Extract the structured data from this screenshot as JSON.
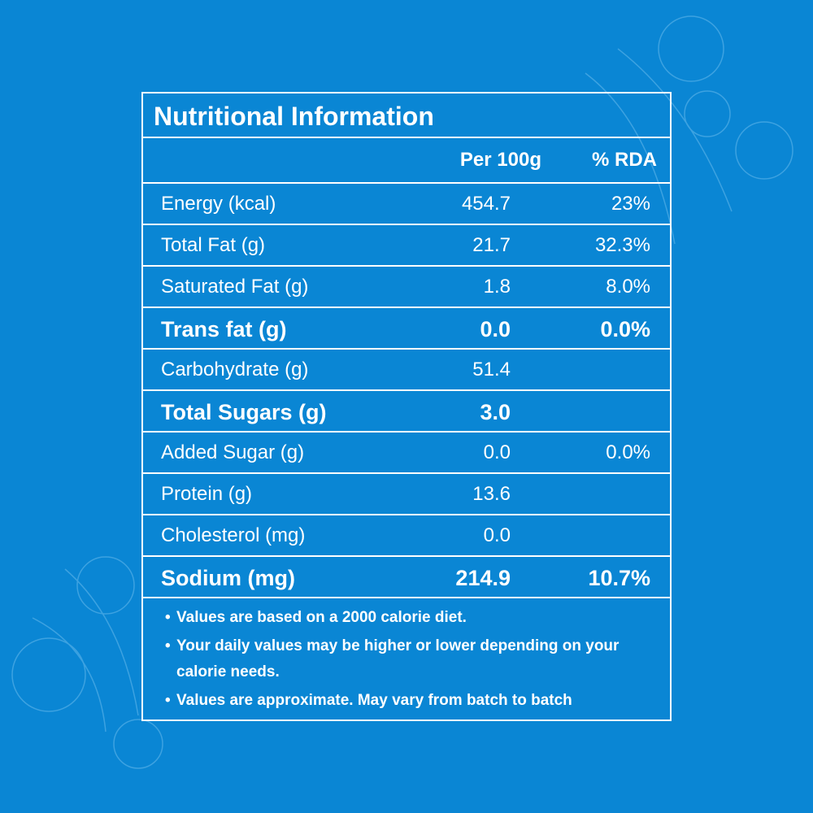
{
  "title": "Nutritional Information",
  "header": {
    "per_100g": "Per 100g",
    "rda": "% RDA"
  },
  "rows": [
    {
      "label": "Energy (kcal)",
      "per_100g": "454.7",
      "rda": "23%"
    },
    {
      "label": "Total Fat (g)",
      "per_100g": "21.7",
      "rda": "32.3%"
    },
    {
      "label": "Saturated Fat (g)",
      "per_100g": "1.8",
      "rda": "8.0%"
    },
    {
      "label": "Trans fat (g)",
      "per_100g": "0.0",
      "rda": "0.0%"
    },
    {
      "label": "Carbohydrate (g)",
      "per_100g": "51.4"
    },
    {
      "label": "Total Sugars (g)",
      "per_100g": "3.0"
    },
    {
      "label": "Added Sugar (g)",
      "per_100g": "0.0",
      "rda": "0.0%"
    },
    {
      "label": "Protein (g)",
      "per_100g": "13.6"
    },
    {
      "label": "Cholesterol (mg)",
      "per_100g": "0.0"
    },
    {
      "label": "Sodium (mg)",
      "per_100g": "214.9",
      "rda": "10.7%"
    }
  ],
  "notes": [
    "Values are based on a 2000 calorie diet.",
    "Your daily values may be higher or lower depending on your calorie needs.",
    "Values are approximate. May vary from batch to batch"
  ]
}
